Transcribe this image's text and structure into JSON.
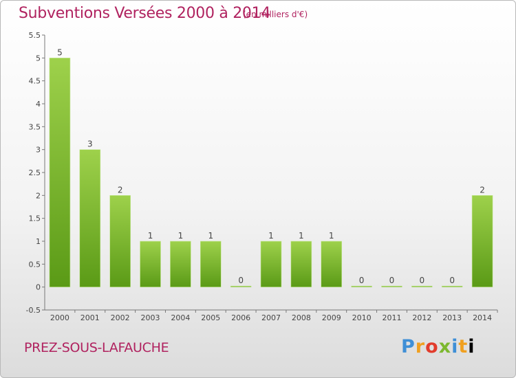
{
  "header": {
    "title": "Subventions Versées 2000 à 2014",
    "unit": "(en milliers d'€)"
  },
  "footer": {
    "commune": "PREZ-SOUS-LAFAUCHE",
    "logo": [
      "P",
      "r",
      "o",
      "x",
      "i",
      "t",
      "i"
    ]
  },
  "colors": {
    "bar_light": "#9ed14b",
    "bar_dark": "#5a9a16",
    "title": "#b0225f"
  },
  "chart_data": {
    "type": "bar",
    "title": "Subventions Versées 2000 à 2014",
    "categories": [
      "2000",
      "2001",
      "2002",
      "2003",
      "2004",
      "2005",
      "2006",
      "2007",
      "2008",
      "2009",
      "2010",
      "2011",
      "2012",
      "2013",
      "2014"
    ],
    "values": [
      5,
      3,
      2,
      1,
      1,
      1,
      0,
      1,
      1,
      1,
      0,
      0,
      0,
      0,
      2
    ],
    "data_labels": [
      "5",
      "3",
      "2",
      "1",
      "1",
      "1",
      "0",
      "1",
      "1",
      "1",
      "0",
      "0",
      "0",
      "0",
      "2"
    ],
    "y_ticks": [
      "-0.5",
      "0",
      "0.5",
      "1",
      "1.5",
      "2",
      "2.5",
      "3",
      "3.5",
      "4",
      "4.5",
      "5",
      "5.5"
    ],
    "ylim": [
      -0.5,
      5.5
    ],
    "grid": false
  }
}
